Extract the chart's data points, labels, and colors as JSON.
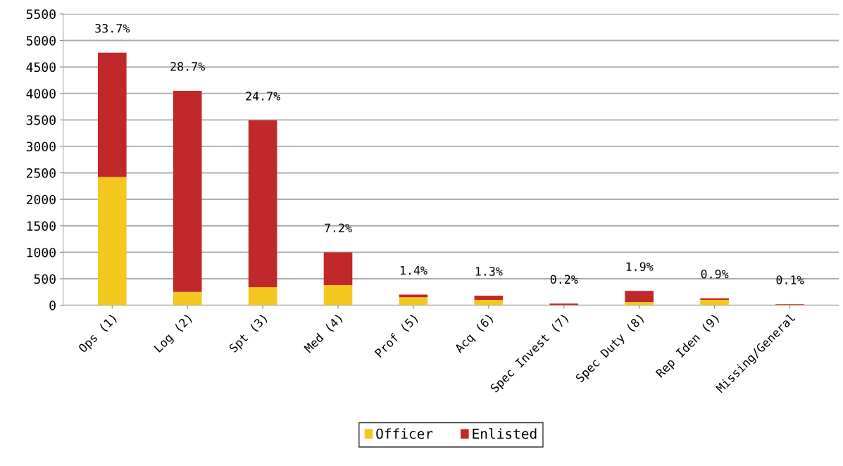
{
  "chart_data": {
    "type": "bar",
    "stacked": true,
    "categories": [
      "Ops (1)",
      "Log (2)",
      "Spt (3)",
      "Med (4)",
      "Prof (5)",
      "Acq (6)",
      "Spec Invest (7)",
      "Spec Duty (8)",
      "Rep Iden (9)",
      "Missing/General"
    ],
    "series": [
      {
        "name": "Officer",
        "color": "#f2c81e",
        "values": [
          2420,
          250,
          340,
          380,
          150,
          100,
          null,
          60,
          100,
          10
        ]
      },
      {
        "name": "Enlisted",
        "color": "#c0282a",
        "values": [
          2350,
          3800,
          3150,
          620,
          50,
          80,
          30,
          210,
          30,
          10
        ]
      }
    ],
    "annotations": [
      {
        "text": "33.7%",
        "x": "Ops (1)",
        "y": 4770
      },
      {
        "text": "28.7%",
        "x": "Log (2)",
        "y": 4050
      },
      {
        "text": "24.7%",
        "x": "Spt (3)",
        "y": 3490
      },
      {
        "text": "7.2%",
        "x": "Med (4)",
        "y": 1000
      },
      {
        "text": "1.4%",
        "x": "Prof (5)",
        "y": 200
      },
      {
        "text": "1.3%",
        "x": "Acq (6)",
        "y": 180
      },
      {
        "text": "0.2%",
        "x": "Spec Invest (7)",
        "y": 30
      },
      {
        "text": "1.9%",
        "x": "Spec Duty (8)",
        "y": 270
      },
      {
        "text": "0.9%",
        "x": "Rep Iden (9)",
        "y": 130
      },
      {
        "text": "0.1%",
        "x": "Missing/General",
        "y": 20
      }
    ],
    "ylim": [
      0,
      5500
    ],
    "yticks": [
      0,
      500,
      1000,
      1500,
      2000,
      2500,
      3000,
      3500,
      4000,
      4500,
      5000,
      5500
    ],
    "grid": "y",
    "legend": "bottom"
  }
}
